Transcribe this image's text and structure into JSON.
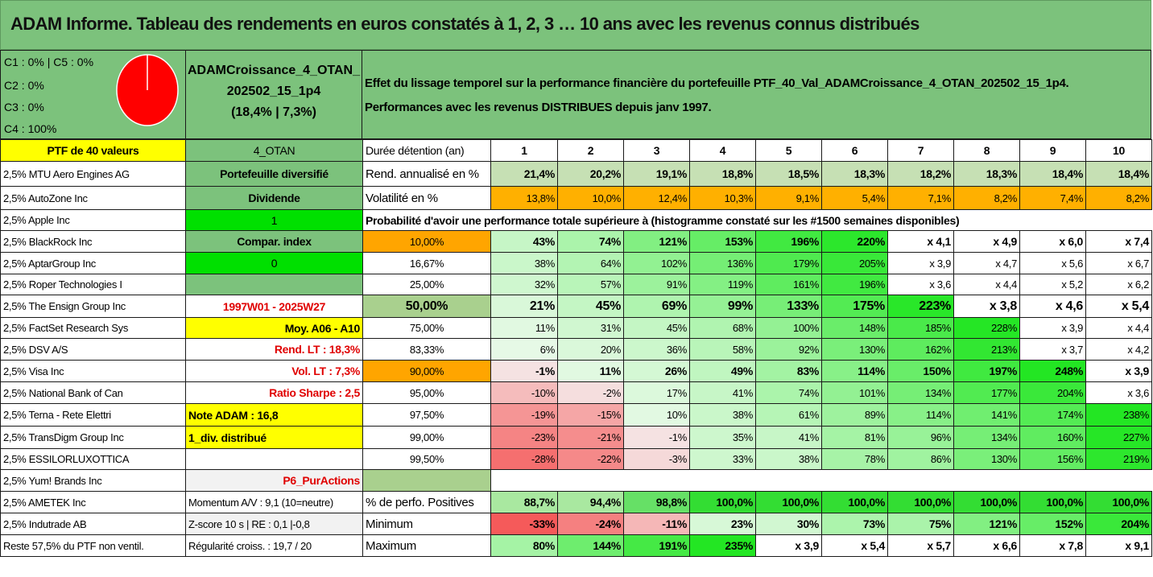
{
  "title": "ADAM Informe. Tableau des rendements en euros constatés à 1, 2, 3 … 10 ans avec les revenus connus distribués",
  "top": {
    "allocation": [
      "C1 : 0% | C5 : 0%",
      "C2 : 0%",
      "C3 : 0%",
      "C4 : 100%"
    ],
    "portfolio_name_1": "ADAMCroissance_4_OTAN_",
    "portfolio_name_2": "202502_15_1p4",
    "portfolio_stats": "(18,4% | 7,3%)",
    "desc_1": "Effet du lissage temporel sur la performance financière du portefeuille PTF_40_Val_ADAMCroissance_4_OTAN_202502_15_1p4.",
    "desc_2": "Performances avec les revenus DISTRIBUES depuis janv 1997."
  },
  "colors": {
    "pie_fill": "#ff0000",
    "title_bg": "#7cc27c"
  },
  "header": {
    "col0": "PTF de 40 valeurs",
    "col1": "4_OTAN",
    "col2": "Durée détention (an)",
    "years": [
      "1",
      "2",
      "3",
      "4",
      "5",
      "6",
      "7",
      "8",
      "9",
      "10"
    ]
  },
  "rows": {
    "r0": {
      "c0": "2,5% MTU Aero Engines AG",
      "c1": "Portefeuille diversifié",
      "c2": "Rend. annualisé en %",
      "v": [
        "21,4%",
        "20,2%",
        "19,1%",
        "18,8%",
        "18,5%",
        "18,3%",
        "18,2%",
        "18,3%",
        "18,4%",
        "18,4%"
      ]
    },
    "r1": {
      "c0": "2,5% AutoZone Inc",
      "c1": "Dividende",
      "c2": "Volatilité en %",
      "v": [
        "13,8%",
        "10,0%",
        "12,4%",
        "10,3%",
        "9,1%",
        "5,4%",
        "7,1%",
        "8,2%",
        "7,4%",
        "8,2%"
      ]
    },
    "r2": {
      "c0": "2,5% Apple Inc",
      "c1": "1",
      "c2": "Probabilité d'avoir une performance totale supérieure à (histogramme constaté sur les #1500 semaines disponibles)"
    },
    "r3": {
      "c0": "2,5% BlackRock Inc",
      "c1": "Compar. index",
      "c2": "10,00%",
      "v": [
        "43%",
        "74%",
        "121%",
        "153%",
        "196%",
        "220%",
        "x 4,1",
        "x 4,9",
        "x 6,0",
        "x 7,4"
      ]
    },
    "r4": {
      "c0": "2,5% AptarGroup Inc",
      "c1": "0",
      "c2": "16,67%",
      "v": [
        "38%",
        "64%",
        "102%",
        "136%",
        "179%",
        "205%",
        "x 3,9",
        "x 4,7",
        "x 5,6",
        "x 6,7"
      ]
    },
    "r5": {
      "c0": "2,5% Roper Technologies I",
      "c1": "",
      "c2": "25,00%",
      "v": [
        "32%",
        "57%",
        "91%",
        "119%",
        "161%",
        "196%",
        "x 3,6",
        "x 4,4",
        "x 5,2",
        "x 6,2"
      ]
    },
    "r6": {
      "c0": "2,5% The Ensign Group Inc",
      "c1": "1997W01 - 2025W27",
      "c2": "50,00%",
      "v": [
        "21%",
        "45%",
        "69%",
        "99%",
        "133%",
        "175%",
        "223%",
        "x 3,8",
        "x 4,6",
        "x 5,4"
      ]
    },
    "r7": {
      "c0": "2,5% FactSet Research Sys",
      "c1": "Moy. A06 - A10",
      "c2": "75,00%",
      "v": [
        "11%",
        "31%",
        "45%",
        "68%",
        "100%",
        "148%",
        "185%",
        "228%",
        "x 3,9",
        "x 4,4"
      ]
    },
    "r8": {
      "c0": "2,5% DSV A/S",
      "c1": "Rend. LT : 18,3%",
      "c2": "83,33%",
      "v": [
        "6%",
        "20%",
        "36%",
        "58%",
        "92%",
        "130%",
        "162%",
        "213%",
        "x 3,7",
        "x 4,2"
      ]
    },
    "r9": {
      "c0": "2,5% Visa Inc",
      "c1": "Vol. LT : 7,3%",
      "c2": "90,00%",
      "v": [
        "-1%",
        "11%",
        "26%",
        "49%",
        "83%",
        "114%",
        "150%",
        "197%",
        "248%",
        "x 3,9"
      ]
    },
    "r10": {
      "c0": "2,5% National Bank of Can",
      "c1": "Ratio Sharpe : 2,5",
      "c2": "95,00%",
      "v": [
        "-10%",
        "-2%",
        "17%",
        "41%",
        "74%",
        "101%",
        "134%",
        "177%",
        "204%",
        "x 3,6"
      ]
    },
    "r11": {
      "c0": "2,5% Terna - Rete Elettri",
      "c1": "Note ADAM : 16,8",
      "c2": "97,50%",
      "v": [
        "-19%",
        "-15%",
        "10%",
        "38%",
        "61%",
        "89%",
        "114%",
        "141%",
        "174%",
        "238%"
      ]
    },
    "r12": {
      "c0": "2,5% TransDigm Group Inc",
      "c1": "1_div. distribué",
      "c2": "99,00%",
      "v": [
        "-23%",
        "-21%",
        "-1%",
        "35%",
        "41%",
        "81%",
        "96%",
        "134%",
        "160%",
        "227%"
      ]
    },
    "r13": {
      "c0": "2,5% ESSILORLUXOTTICA",
      "c1": "",
      "c2": "99,50%",
      "v": [
        "-28%",
        "-22%",
        "-3%",
        "33%",
        "38%",
        "78%",
        "86%",
        "130%",
        "156%",
        "219%"
      ]
    },
    "r14": {
      "c0": "2,5% Yum! Brands Inc",
      "c1": "P6_PurActions"
    },
    "r15": {
      "c0": "2,5% AMETEK Inc",
      "c1": "Momentum A/V : 9,1 (10=neutre)",
      "c2": "% de perfo. Positives",
      "v": [
        "88,7%",
        "94,4%",
        "98,8%",
        "100,0%",
        "100,0%",
        "100,0%",
        "100,0%",
        "100,0%",
        "100,0%",
        "100,0%"
      ]
    },
    "r16": {
      "c0": "2,5% Indutrade AB",
      "c1": "Z-score 10 s | RE : 0,1 |-0,8",
      "c2": "Minimum",
      "v": [
        "-33%",
        "-24%",
        "-11%",
        "23%",
        "30%",
        "73%",
        "75%",
        "121%",
        "152%",
        "204%"
      ]
    },
    "r17": {
      "c0": "Reste 57,5% du PTF non ventil.",
      "c1": "Régularité croiss. : 19,7 / 20",
      "c2": "Maximum",
      "v": [
        "80%",
        "144%",
        "191%",
        "235%",
        "x 3,9",
        "x 5,4",
        "x 5,7",
        "x 6,6",
        "x 7,8",
        "x 9,1"
      ]
    }
  }
}
